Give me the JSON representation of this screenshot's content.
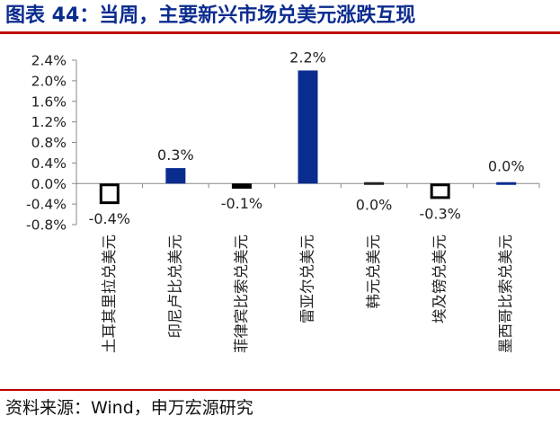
{
  "header": {
    "title": "图表 44：当周，主要新兴市场兑美元涨跌互现"
  },
  "footer": {
    "source": "资料来源：Wind，申万宏源研究"
  },
  "chart_data": {
    "type": "bar",
    "title": "",
    "xlabel": "",
    "ylabel": "",
    "categories": [
      "土耳其里拉兑美元",
      "印尼卢比兑美元",
      "菲律宾比索兑美元",
      "雷亚尔兑美元",
      "韩元兑美元",
      "埃及镑兑美元",
      "墨西哥比索兑美元"
    ],
    "values": [
      -0.4,
      0.3,
      -0.1,
      2.2,
      0.0,
      -0.3,
      0.0
    ],
    "data_labels": [
      "-0.4%",
      "0.3%",
      "-0.1%",
      "2.2%",
      "0.0%",
      "-0.3%",
      "0.0%"
    ],
    "ylim": [
      -0.8,
      2.4
    ],
    "y_ticks": [
      "2.4%",
      "2.0%",
      "1.6%",
      "1.2%",
      "0.8%",
      "0.4%",
      "0.0%",
      "-0.4%",
      "-0.8%"
    ],
    "y_tick_values": [
      2.4,
      2.0,
      1.6,
      1.2,
      0.8,
      0.4,
      0.0,
      -0.4,
      -0.8
    ],
    "grid": false,
    "legend": "none",
    "colors": {
      "positive_fill": "#0b2c8f",
      "negative_fill": "#ffffff",
      "negative_stroke": "#000000",
      "axis": "#888888"
    }
  }
}
